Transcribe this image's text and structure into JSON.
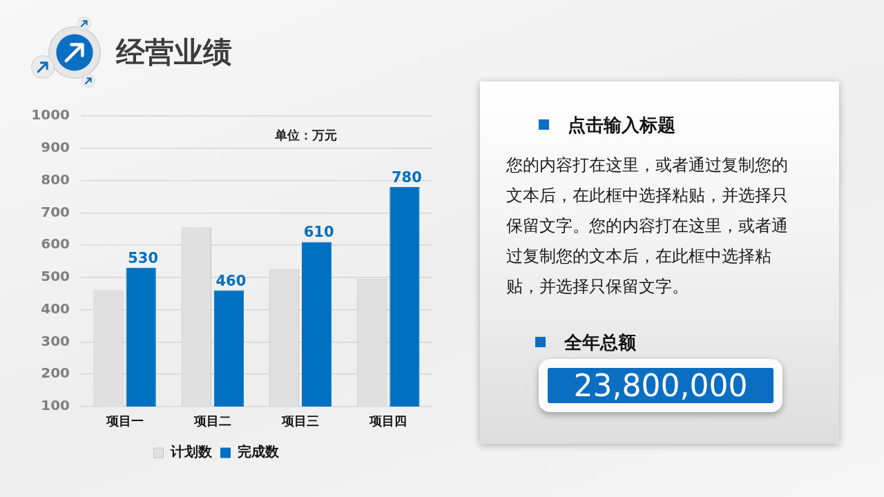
{
  "chart_data": [
    {
      "type": "bar",
      "title": "经营业绩",
      "categories": [
        "项目一",
        "项目二",
        "项目三",
        "项目四"
      ],
      "series": [
        {
          "name": "计划数",
          "color": "#e0e0e0",
          "values": [
            460,
            655,
            525,
            495
          ]
        },
        {
          "name": "完成数",
          "color": "#0070c0",
          "values": [
            530,
            460,
            610,
            780
          ],
          "value_labels": [
            "530",
            "460",
            "610",
            "780"
          ]
        }
      ],
      "ylim": [
        100,
        1000
      ],
      "yticks": [
        100,
        200,
        300,
        400,
        500,
        600,
        700,
        800,
        900,
        1000
      ],
      "grid": "y",
      "legend": "bottom",
      "annotations": [
        "单位：万元"
      ]
    },
    {
      "type": "other",
      "title": "点击输入标题",
      "annotations": [
        "您的内容打在这里，或者通过复制您的文本后，在此框中选择粘贴，并选择只保留文字。您的内容打在这里，或者通过复制您的文本后，在此框中选择粘贴，并选择只保留文字。",
        "全年总额",
        "23,800,000"
      ]
    }
  ]
}
